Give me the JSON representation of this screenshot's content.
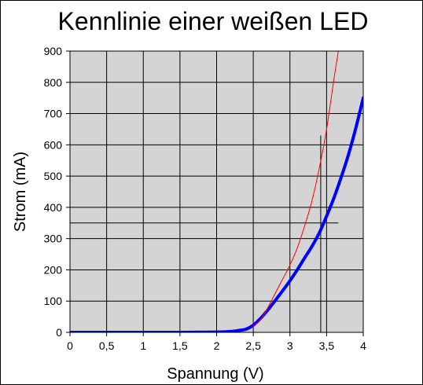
{
  "chart_data": {
    "type": "line",
    "title": "Kennlinie einer weißen LED",
    "xlabel": "Spannung (V)",
    "ylabel": "Strom (mA)",
    "xlim": [
      0,
      4
    ],
    "ylim": [
      0,
      900
    ],
    "x_ticks": [
      0,
      0.5,
      1,
      1.5,
      2,
      2.5,
      3,
      3.5,
      4
    ],
    "x_tick_labels": [
      "0",
      "0,5",
      "1",
      "1,5",
      "2",
      "2,5",
      "3",
      "3,5",
      "4"
    ],
    "y_ticks": [
      0,
      100,
      200,
      300,
      400,
      500,
      600,
      700,
      800,
      900
    ],
    "y_tick_labels": [
      "0",
      "100",
      "200",
      "300",
      "400",
      "500",
      "600",
      "700",
      "800",
      "900"
    ],
    "grid": true,
    "background_color": "#d4d4d4",
    "series": [
      {
        "color": "#0000ff",
        "line_weight": "thick",
        "x": [
          0,
          0.5,
          1,
          1.5,
          2,
          2.2,
          2.3,
          2.4,
          2.5,
          2.6,
          2.7,
          2.8,
          2.9,
          3.0,
          3.1,
          3.2,
          3.3,
          3.4,
          3.5,
          3.6,
          3.7,
          3.8,
          3.9,
          4.0
        ],
        "y": [
          0,
          0,
          0,
          0,
          1,
          3,
          6,
          10,
          23,
          45,
          72,
          102,
          133,
          165,
          200,
          238,
          275,
          318,
          372,
          430,
          497,
          570,
          655,
          750
        ]
      },
      {
        "color": "#ff0000",
        "line_weight": "thin",
        "x": [
          2.5,
          2.6,
          2.7,
          2.8,
          2.9,
          3.0,
          3.1,
          3.2,
          3.3,
          3.4,
          3.5,
          3.6,
          3.66
        ],
        "y": [
          20,
          40,
          80,
          125,
          170,
          215,
          270,
          340,
          420,
          525,
          650,
          810,
          900
        ]
      }
    ],
    "reference_lines": [
      {
        "orientation": "horizontal",
        "y": 350,
        "x_range": [
          0,
          3.66
        ]
      },
      {
        "orientation": "vertical",
        "x": 3.42,
        "y_range": [
          0,
          630
        ]
      }
    ]
  }
}
